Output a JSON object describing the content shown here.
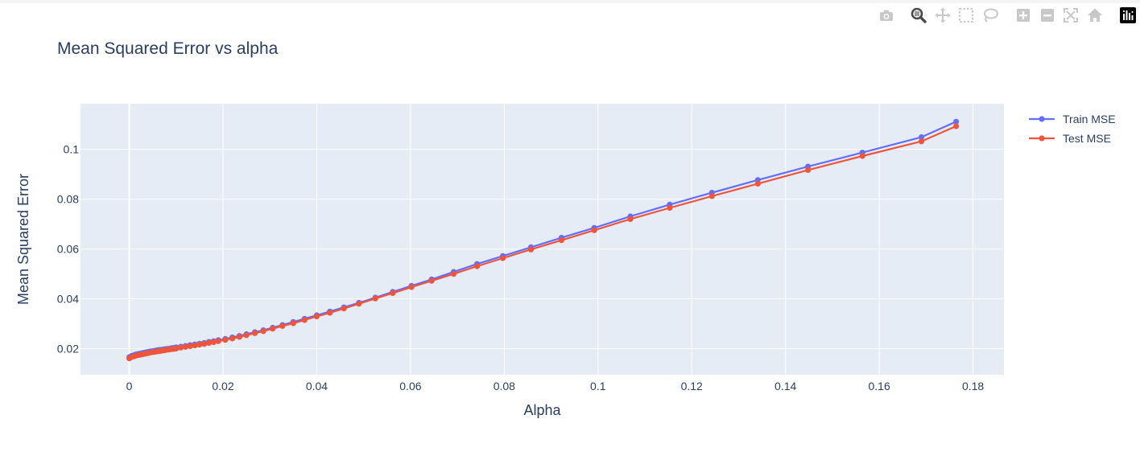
{
  "modebar": {
    "icons": [
      "camera-icon",
      "zoom-icon",
      "pan-icon",
      "box-select-icon",
      "lasso-select-icon",
      "zoom-in-icon",
      "zoom-out-icon",
      "autoscale-icon",
      "reset-axes-icon",
      "plotly-logo-icon"
    ]
  },
  "chart_data": {
    "type": "line",
    "title": "Mean Squared Error vs alpha",
    "xlabel": "Alpha",
    "ylabel": "Mean Squared Error",
    "xlim": [
      -0.0104,
      0.1866
    ],
    "ylim": [
      0.0095,
      0.1183
    ],
    "xticks": [
      "0",
      "0.02",
      "0.04",
      "0.06",
      "0.08",
      "0.1",
      "0.12",
      "0.14",
      "0.16",
      "0.18"
    ],
    "yticks": [
      "0.02",
      "0.04",
      "0.06",
      "0.08",
      "0.1"
    ],
    "grid": true,
    "legend_position": "top-right",
    "background": "#e5ecf6",
    "series": [
      {
        "name": "Train MSE",
        "color": "#636efa",
        "x": [
          0,
          0.0005,
          0.001,
          0.0015,
          0.002,
          0.0025,
          0.003,
          0.0035,
          0.004,
          0.0045,
          0.005,
          0.0055,
          0.006,
          0.0065,
          0.007,
          0.0075,
          0.008,
          0.0085,
          0.009,
          0.0095,
          0.01,
          0.011,
          0.012,
          0.013,
          0.014,
          0.015,
          0.016,
          0.017,
          0.018,
          0.019,
          0.0205,
          0.022,
          0.0235,
          0.025,
          0.0268,
          0.0286,
          0.0306,
          0.0327,
          0.035,
          0.0374,
          0.04,
          0.0428,
          0.0458,
          0.049,
          0.0525,
          0.0562,
          0.0602,
          0.0645,
          0.0692,
          0.0742,
          0.0797,
          0.0857,
          0.0922,
          0.0992,
          0.1069,
          0.1153,
          0.1243,
          0.1341,
          0.1448,
          0.1564,
          0.169,
          0.1764
        ],
        "y": [
          0.0166,
          0.0171,
          0.0174,
          0.0177,
          0.0179,
          0.0181,
          0.0183,
          0.0185,
          0.0187,
          0.0189,
          0.019,
          0.0192,
          0.0194,
          0.0195,
          0.0196,
          0.0198,
          0.0199,
          0.02,
          0.0202,
          0.0203,
          0.0205,
          0.0208,
          0.0211,
          0.0214,
          0.0217,
          0.022,
          0.0223,
          0.0227,
          0.023,
          0.0234,
          0.0239,
          0.0245,
          0.0251,
          0.0258,
          0.0266,
          0.0274,
          0.0284,
          0.0295,
          0.0307,
          0.032,
          0.0334,
          0.0349,
          0.0366,
          0.0384,
          0.0405,
          0.0428,
          0.0452,
          0.0478,
          0.0508,
          0.054,
          0.0572,
          0.0607,
          0.0645,
          0.0685,
          0.0731,
          0.0778,
          0.0826,
          0.0877,
          0.0931,
          0.0987,
          0.1049,
          0.1111
        ]
      },
      {
        "name": "Test MSE",
        "color": "#ef553b",
        "x": [
          0,
          0.0005,
          0.001,
          0.0015,
          0.002,
          0.0025,
          0.003,
          0.0035,
          0.004,
          0.0045,
          0.005,
          0.0055,
          0.006,
          0.0065,
          0.007,
          0.0075,
          0.008,
          0.0085,
          0.009,
          0.0095,
          0.01,
          0.011,
          0.012,
          0.013,
          0.014,
          0.015,
          0.016,
          0.017,
          0.018,
          0.019,
          0.0205,
          0.022,
          0.0235,
          0.025,
          0.0268,
          0.0286,
          0.0306,
          0.0327,
          0.035,
          0.0374,
          0.04,
          0.0428,
          0.0458,
          0.049,
          0.0525,
          0.0562,
          0.0602,
          0.0645,
          0.0692,
          0.0742,
          0.0797,
          0.0857,
          0.0922,
          0.0992,
          0.1069,
          0.1153,
          0.1243,
          0.1341,
          0.1448,
          0.1564,
          0.169,
          0.1764
        ],
        "y": [
          0.0161,
          0.0166,
          0.0169,
          0.0172,
          0.0174,
          0.0176,
          0.0178,
          0.018,
          0.0182,
          0.0184,
          0.0186,
          0.0187,
          0.0189,
          0.019,
          0.0192,
          0.0193,
          0.0195,
          0.0196,
          0.0198,
          0.0199,
          0.02,
          0.0204,
          0.0207,
          0.021,
          0.0213,
          0.0216,
          0.0219,
          0.0223,
          0.0226,
          0.023,
          0.0235,
          0.0241,
          0.0247,
          0.0254,
          0.0262,
          0.027,
          0.028,
          0.0291,
          0.0302,
          0.0315,
          0.0329,
          0.0344,
          0.0361,
          0.038,
          0.0401,
          0.0423,
          0.0447,
          0.0472,
          0.05,
          0.0531,
          0.0563,
          0.0598,
          0.0635,
          0.0675,
          0.072,
          0.0765,
          0.0812,
          0.0862,
          0.0917,
          0.0973,
          0.1032,
          0.1093
        ]
      }
    ]
  }
}
